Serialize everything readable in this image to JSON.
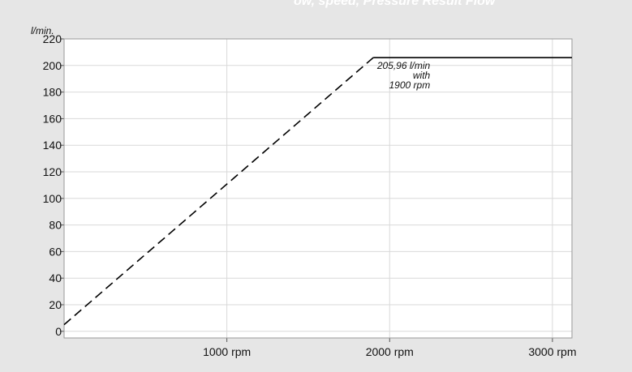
{
  "header": {
    "caption": "ow, speed, Pressure Result     Flow"
  },
  "chart_data": {
    "type": "line",
    "title": "",
    "xlabel": "",
    "ylabel": "l/min.",
    "xlim": [
      0,
      3120
    ],
    "ylim": [
      -5,
      220
    ],
    "x_unit": "rpm",
    "y_ticks": [
      0,
      20,
      40,
      60,
      80,
      100,
      120,
      140,
      160,
      180,
      200,
      220
    ],
    "x_ticks": [
      1000,
      2000,
      3000
    ],
    "x_tick_labels": [
      "1000 rpm",
      "2000 rpm",
      "3000 rpm"
    ],
    "grid": true,
    "series": [
      {
        "style": "dashed",
        "color": "#000000",
        "points": [
          [
            0,
            5
          ],
          [
            1900,
            205.96
          ]
        ]
      },
      {
        "style": "solid",
        "color": "#000000",
        "points": [
          [
            1900,
            205.96
          ],
          [
            3120,
            205.96
          ]
        ]
      }
    ],
    "annotations": [
      {
        "lines": [
          "205,96 l/min",
          "with",
          "1900 rpm"
        ],
        "x": 1900,
        "y": 205.96
      }
    ]
  }
}
